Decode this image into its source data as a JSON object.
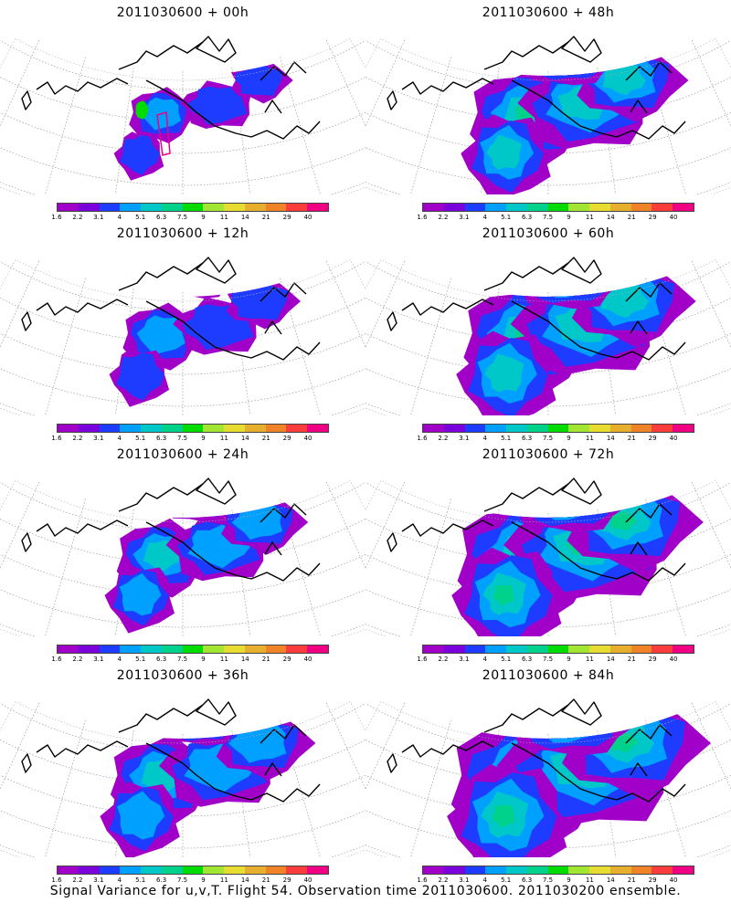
{
  "panels": [
    {
      "title": "2011030600 + 00h",
      "stage": 0
    },
    {
      "title": "2011030600 + 48h",
      "stage": 4
    },
    {
      "title": "2011030600 + 12h",
      "stage": 1
    },
    {
      "title": "2011030600 + 60h",
      "stage": 5
    },
    {
      "title": "2011030600 + 24h",
      "stage": 2
    },
    {
      "title": "2011030600 + 72h",
      "stage": 6
    },
    {
      "title": "2011030600 + 36h",
      "stage": 3
    },
    {
      "title": "2011030600 + 84h",
      "stage": 7
    }
  ],
  "colorbar": {
    "labels": [
      "1.6",
      "2.2",
      "3.1",
      "4",
      "5.1",
      "6.3",
      "7.5",
      "9",
      "11",
      "14",
      "21",
      "29",
      "40"
    ],
    "colors": [
      "#a000c8",
      "#7a00dc",
      "#1e3cff",
      "#00a0ff",
      "#00c8c8",
      "#00d28c",
      "#00dc00",
      "#a0e632",
      "#e6dc32",
      "#e6af2d",
      "#f08228",
      "#fa3c3c",
      "#f00082"
    ]
  },
  "caption": "Signal Variance for u,v,T. Flight 54. Observation time 2011030600. 2011030200 ensemble."
}
